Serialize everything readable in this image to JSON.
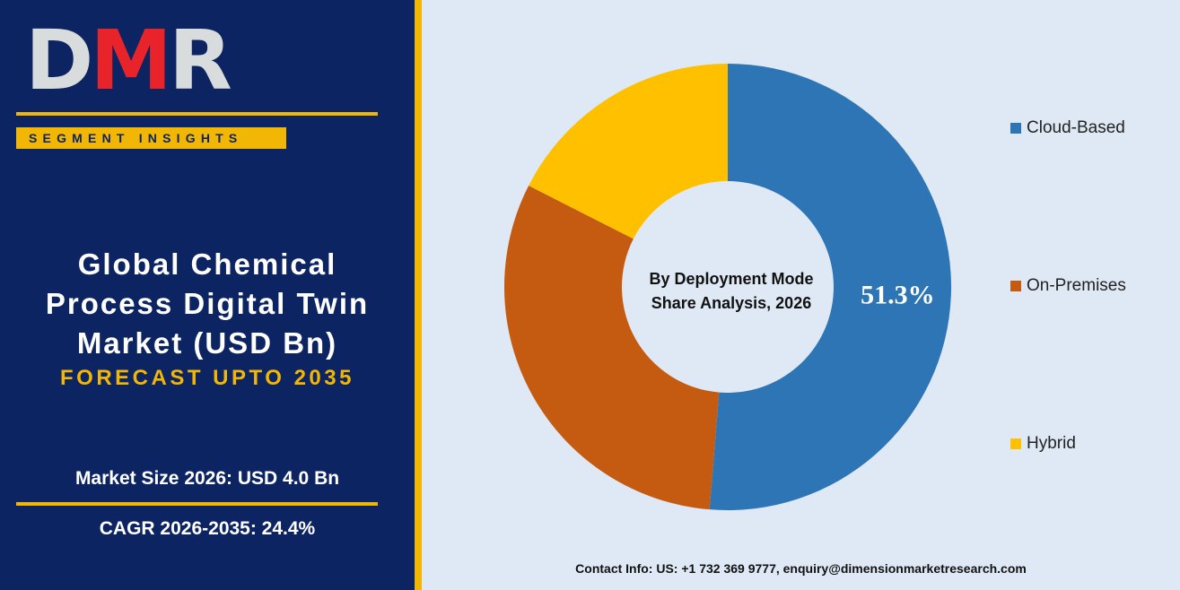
{
  "logo": {
    "text": "DMR",
    "letters": [
      "D",
      "M",
      "R"
    ],
    "colors": [
      "#d9dcdc",
      "#e8232a",
      "#d9dcdc"
    ]
  },
  "banner": {
    "label": "SEGMENT INSIGHTS"
  },
  "title": {
    "line1": "Global Chemical",
    "line2": "Process Digital Twin",
    "line3": "Market (USD Bn)",
    "forecast": "FORECAST UPTO 2035"
  },
  "stats": {
    "market_size": "Market Size 2026: USD 4.0 Bn",
    "cagr": "CAGR 2026-2035: 24.4%"
  },
  "contact": "Contact Info: US: +1 732 369 9777, enquiry@dimensionmarketresearch.com",
  "colors": {
    "navy": "#0d2462",
    "gold": "#f2b705",
    "background": "#dfe9f5"
  },
  "chart_data": {
    "type": "pie",
    "style": "donut",
    "center_text": [
      "By Deployment Mode",
      "Share Analysis, 2026"
    ],
    "categories": [
      "Cloud-Based",
      "On-Premises",
      "Hybrid"
    ],
    "values": [
      51.3,
      31.2,
      17.5
    ],
    "colors": [
      "#2e75b6",
      "#c55a11",
      "#ffc000"
    ],
    "data_labels": [
      "51.3%",
      "",
      ""
    ],
    "legend_position": "right"
  }
}
